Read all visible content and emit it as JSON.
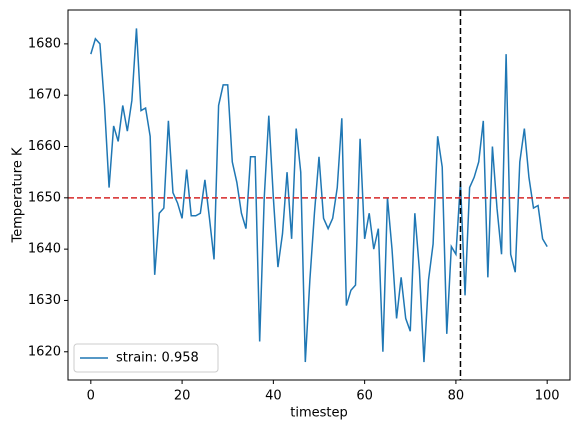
{
  "chart_data": {
    "type": "line",
    "xlabel": "timestep",
    "ylabel": "Temperature K",
    "x": [
      0,
      1,
      2,
      3,
      4,
      5,
      6,
      7,
      8,
      9,
      10,
      11,
      12,
      13,
      14,
      15,
      16,
      17,
      18,
      19,
      20,
      21,
      22,
      23,
      24,
      25,
      26,
      27,
      28,
      29,
      30,
      31,
      32,
      33,
      34,
      35,
      36,
      37,
      38,
      39,
      40,
      41,
      42,
      43,
      44,
      45,
      46,
      47,
      48,
      49,
      50,
      51,
      52,
      53,
      54,
      55,
      56,
      57,
      58,
      59,
      60,
      61,
      62,
      63,
      64,
      65,
      66,
      67,
      68,
      69,
      70,
      71,
      72,
      73,
      74,
      75,
      76,
      77,
      78,
      79,
      80,
      81,
      82,
      83,
      84,
      85,
      86,
      87,
      88,
      89,
      90,
      91,
      92,
      93,
      94,
      95,
      96,
      97,
      98,
      99,
      100
    ],
    "series": [
      {
        "name": "strain: 0.958",
        "color": "#1f77b4",
        "values": [
          1678,
          1681,
          1680,
          1668,
          1652,
          1664,
          1661,
          1668,
          1663,
          1669,
          1683,
          1667,
          1667.5,
          1662,
          1635,
          1647,
          1648,
          1665,
          1651,
          1649,
          1646,
          1655.5,
          1646.5,
          1646.5,
          1647,
          1653.5,
          1646,
          1638,
          1668,
          1672,
          1672,
          1657,
          1653,
          1647,
          1644,
          1658,
          1658,
          1622,
          1650,
          1666,
          1650,
          1636.5,
          1643,
          1655,
          1642,
          1663.5,
          1655,
          1618,
          1634,
          1647,
          1658,
          1646,
          1644,
          1646,
          1652,
          1665.5,
          1629,
          1632,
          1633,
          1661.5,
          1642,
          1647,
          1640,
          1644,
          1620,
          1650,
          1640,
          1626.5,
          1634.5,
          1626.5,
          1624,
          1647,
          1636,
          1618,
          1634,
          1641,
          1662,
          1656,
          1623.5,
          1640.5,
          1639,
          1653,
          1631,
          1652,
          1654,
          1657,
          1665,
          1634.5,
          1660,
          1648,
          1639,
          1678,
          1639,
          1635.5,
          1657,
          1663.5,
          1654,
          1648,
          1648.5,
          1642,
          1640.5
        ]
      }
    ],
    "xlim": [
      -5,
      105
    ],
    "xticks": [
      0,
      20,
      40,
      60,
      80,
      100
    ],
    "ylim": [
      1614.5,
      1686.6
    ],
    "yticks": [
      1620,
      1630,
      1640,
      1650,
      1660,
      1670,
      1680
    ],
    "hline": {
      "y": 1650,
      "color": "#d62728"
    },
    "vline": {
      "x": 81,
      "color": "#000000"
    },
    "legend": "lower left"
  }
}
